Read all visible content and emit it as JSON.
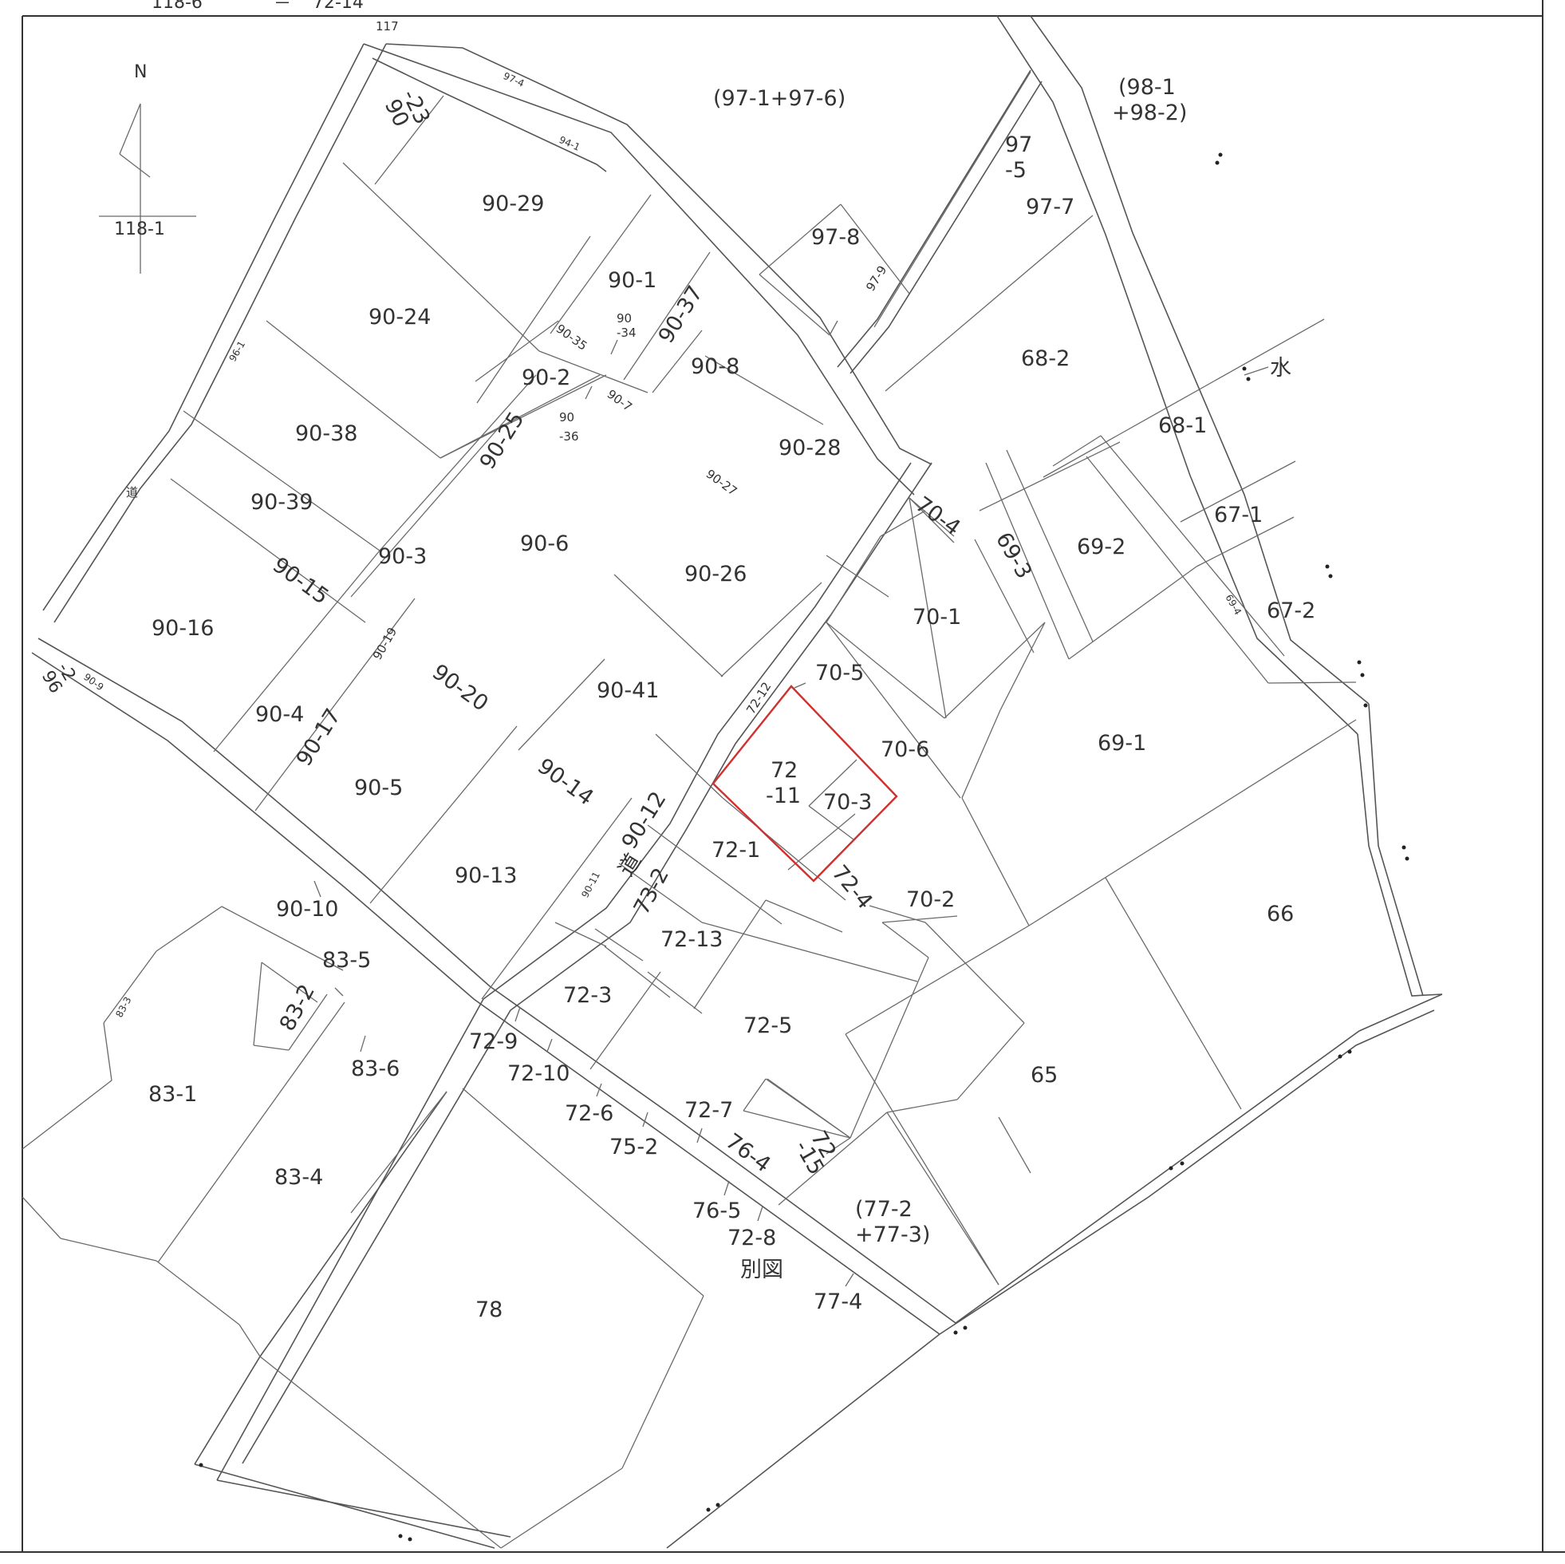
{
  "header": {
    "left_fragment": "118-6",
    "right_fragment": "72-14",
    "mark": "＝"
  },
  "compass": {
    "north_label": "N",
    "reference_parcel": "118-1"
  },
  "water_label": "水",
  "separate_sheet_label": "別図",
  "road_labels": {
    "road_a": "道",
    "road_b": "道"
  },
  "colors": {
    "highlight": "#d0302e",
    "line": "#6a6a6a"
  },
  "highlighted_parcels": [
    "72-11",
    "70-3"
  ],
  "parcels": {
    "p117": "117",
    "p97_4": "97-4",
    "p94_1": "94-1",
    "p97_1_6": "(97-1+97-6)",
    "p98_1": "(98-1",
    "p98_2": "+98-2)",
    "p90_23a": "90",
    "p90_23b": "-23",
    "p90_29": "90-29",
    "p97_5a": "97",
    "p97_5b": "-5",
    "p97_7": "97-7",
    "p97_8": "97-8",
    "p97_9": "97-9",
    "p90_1": "90-1",
    "p90_24": "90-24",
    "p90_37": "90-37",
    "p90_34a": "90",
    "p90_34b": "-34",
    "p90_35": "90-35",
    "p90_8": "90-8",
    "p68_2": "68-2",
    "p96_1": "96-1",
    "p90_2": "90-2",
    "p90_36a": "90",
    "p90_36b": "-36",
    "p90_7": "90-7",
    "p90_38": "90-38",
    "p90_25": "90-25",
    "p90_28": "90-28",
    "p68_1": "68-1",
    "p90_39": "90-39",
    "p90_27": "90-27",
    "p70_4": "70-4",
    "p69_3": "69-3",
    "p69_2": "69-2",
    "p67_1": "67-1",
    "p90_3": "90-3",
    "p90_6": "90-6",
    "p90_26": "90-26",
    "p90_15": "90-15",
    "p90_16": "90-16",
    "p70_1": "70-1",
    "p69_4": "69-4",
    "p67_2": "67-2",
    "p90_19": "90-19",
    "p96_2a": "96",
    "p96_2b": "-2",
    "p90_9": "90-9",
    "p90_20": "90-20",
    "p90_41": "90-41",
    "p72_12": "72-12",
    "p70_5": "70-5",
    "p90_4": "90-4",
    "p90_17": "90-17",
    "p70_6": "70-6",
    "p69_1": "69-1",
    "p72_11a": "72",
    "p72_11b": "-11",
    "p90_5": "90-5",
    "p90_14": "90-14",
    "p70_3": "70-3",
    "p90_12": "90-12",
    "p72_1": "72-1",
    "p90_13": "90-13",
    "p90_11": "90-11",
    "p72_4": "72-4",
    "p70_2": "70-2",
    "p73_2": "73-2",
    "p90_10": "90-10",
    "p66": "66",
    "p72_13": "72-13",
    "p83_5": "83-5",
    "p83_3": "83-3",
    "p83_2": "83-2",
    "p72_3": "72-3",
    "p72_5": "72-5",
    "p72_9": "72-9",
    "p83_6": "83-6",
    "p72_10": "72-10",
    "p65": "65",
    "p83_1": "83-1",
    "p72_6": "72-6",
    "p72_7": "72-7",
    "p72_15a": "72",
    "p72_15b": "-15",
    "p75_2": "75-2",
    "p76_4": "76-4",
    "p83_4": "83-4",
    "p76_5": "76-5",
    "p77_2": "(77-2",
    "p77_3": "+77-3)",
    "p72_8": "72-8",
    "p77_4": "77-4",
    "p78": "78"
  }
}
